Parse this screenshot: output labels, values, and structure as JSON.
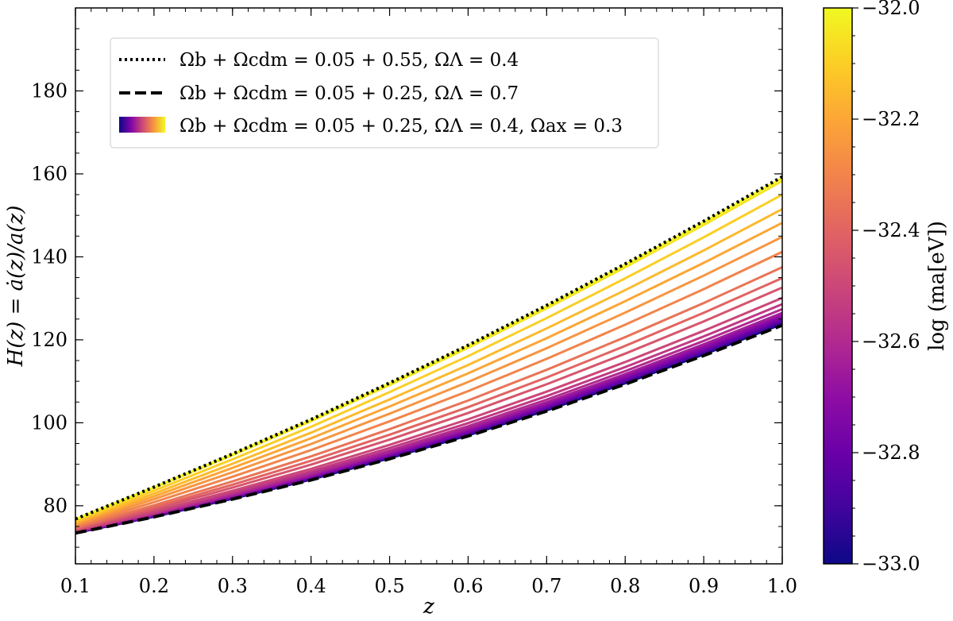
{
  "chart_data": {
    "type": "line",
    "xlabel": "z",
    "ylabel": "H(z) = ȧ(z)/a(z)",
    "xlim": [
      0.1,
      1.0
    ],
    "ylim": [
      66,
      200
    ],
    "xticks": [
      "0.1",
      "0.2",
      "0.3",
      "0.4",
      "0.5",
      "0.6",
      "0.7",
      "0.8",
      "0.9",
      "1.0"
    ],
    "yticks": [
      "80",
      "100",
      "120",
      "140",
      "160",
      "180"
    ],
    "x": [
      0.1,
      0.2,
      0.3,
      0.4,
      0.5,
      0.6,
      0.7,
      0.8,
      0.9,
      1.0
    ],
    "grid": false,
    "legend_position": "top-left",
    "legend": [
      {
        "style": "dotted",
        "color": "#000000",
        "label": "Ωb + Ωcdm = 0.05 + 0.55, ΩΛ = 0.4"
      },
      {
        "style": "dashed",
        "color": "#000000",
        "label": "Ωb + Ωcdm = 0.05 + 0.25, ΩΛ = 0.7"
      },
      {
        "style": "colormap",
        "colormap": "plasma",
        "label": "Ωb + Ωcdm = 0.05 + 0.25, ΩΛ = 0.4, Ωax = 0.3"
      }
    ],
    "series": [
      {
        "style": "dotted",
        "color": "#000000",
        "values": [
          76.8,
          84.5,
          92.5,
          100.8,
          109.6,
          118.7,
          128.3,
          138.3,
          148.6,
          159.3
        ]
      },
      {
        "style": "dashed",
        "color": "#000000",
        "values": [
          73.4,
          77.3,
          81.6,
          86.2,
          91.3,
          96.8,
          102.8,
          109.3,
          116.2,
          123.5
        ]
      }
    ],
    "colormap_family": {
      "colormap": "plasma",
      "log_ma": [
        -32.0,
        -32.05,
        -32.1,
        -32.15,
        -32.2,
        -32.25,
        -32.3,
        -32.35,
        -32.4,
        -32.45,
        -32.5,
        -32.55,
        -32.6,
        -32.65,
        -32.7,
        -32.75,
        -32.8,
        -32.85,
        -32.9,
        -32.95,
        -33.0
      ],
      "values_at_z1": [
        159.0,
        158.3,
        155.0,
        151.5,
        148.2,
        144.8,
        141.2,
        137.5,
        134.9,
        132.6,
        130.1,
        128.6,
        127.4,
        126.5,
        125.9,
        125.4,
        124.9,
        124.6,
        124.3,
        124.1,
        123.8
      ],
      "blend_note": ""
    },
    "colorbar": {
      "label": "log (ma[eV])",
      "range": [
        -33.0,
        -32.0
      ],
      "ticks": [
        "−32.0",
        "−32.2",
        "−32.4",
        "−32.6",
        "−32.8",
        "−33.0"
      ],
      "tick_values": [
        -32.0,
        -32.2,
        -32.4,
        -32.6,
        -32.8,
        -33.0
      ]
    }
  }
}
